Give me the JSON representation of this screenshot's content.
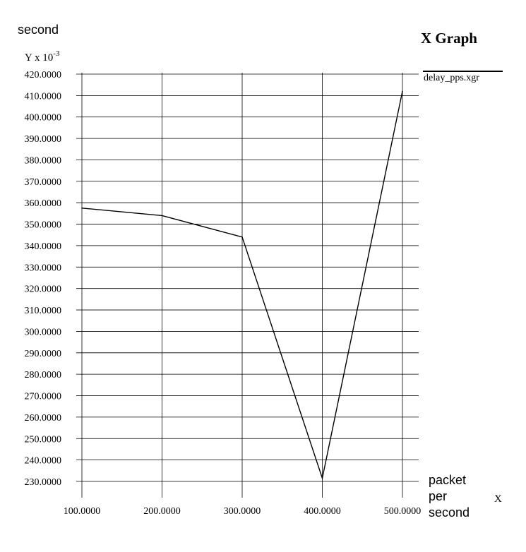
{
  "chart_data": {
    "type": "line",
    "title": "X Graph",
    "ylabel": "second",
    "yscale_label_prefix": "Y x 10",
    "yscale_label_exponent": "-3",
    "xlabel_lines": [
      "packet",
      "per",
      "second"
    ],
    "x_axis_marker": "X",
    "xlim": [
      100,
      500
    ],
    "ylim": [
      230,
      420
    ],
    "x_ticks": [
      100,
      200,
      300,
      400,
      500
    ],
    "x_tick_labels": [
      "100.0000",
      "200.0000",
      "300.0000",
      "400.0000",
      "500.0000"
    ],
    "y_ticks": [
      230,
      240,
      250,
      260,
      270,
      280,
      290,
      300,
      310,
      320,
      330,
      340,
      350,
      360,
      370,
      380,
      390,
      400,
      410,
      420
    ],
    "y_tick_labels": [
      "230.0000",
      "240.0000",
      "250.0000",
      "260.0000",
      "270.0000",
      "280.0000",
      "290.0000",
      "300.0000",
      "310.0000",
      "320.0000",
      "330.0000",
      "340.0000",
      "350.0000",
      "360.0000",
      "370.0000",
      "380.0000",
      "390.0000",
      "400.0000",
      "410.0000",
      "420.0000"
    ],
    "grid": true,
    "legend_position": "top-right",
    "series": [
      {
        "name": "delay_pps.xgr",
        "color": "#000000",
        "x": [
          100,
          200,
          300,
          400,
          500
        ],
        "y": [
          357.5,
          354,
          344,
          231.5,
          412
        ]
      }
    ]
  }
}
